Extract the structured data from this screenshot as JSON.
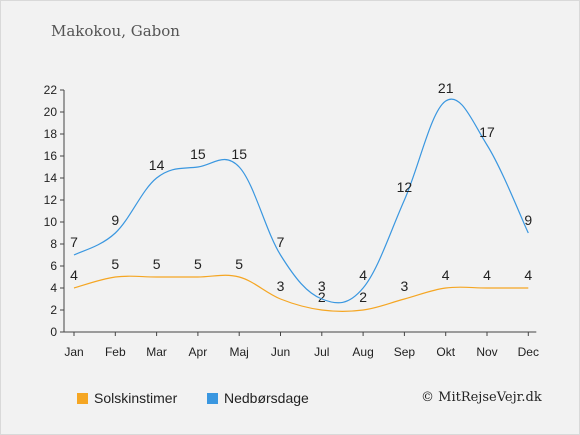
{
  "chart_data": {
    "type": "line",
    "title": "Makokou, Gabon",
    "categories": [
      "Jan",
      "Feb",
      "Mar",
      "Apr",
      "Maj",
      "Jun",
      "Jul",
      "Aug",
      "Sep",
      "Okt",
      "Nov",
      "Dec"
    ],
    "ylim": [
      0,
      22
    ],
    "yticks": [
      0,
      2,
      4,
      6,
      8,
      10,
      12,
      14,
      16,
      18,
      20,
      22
    ],
    "grid": false,
    "legend_position": "bottom",
    "series": [
      {
        "name": "Solskinstimer",
        "color": "#f5a623",
        "values": [
          4,
          5,
          5,
          5,
          5,
          3,
          2,
          2,
          3,
          4,
          4,
          4
        ]
      },
      {
        "name": "Nedbørsdage",
        "color": "#3a97e0",
        "values": [
          7,
          9,
          14,
          15,
          15,
          7,
          3,
          4,
          12,
          21,
          17,
          9
        ]
      }
    ]
  },
  "credit": "© MitRejseVejr.dk"
}
